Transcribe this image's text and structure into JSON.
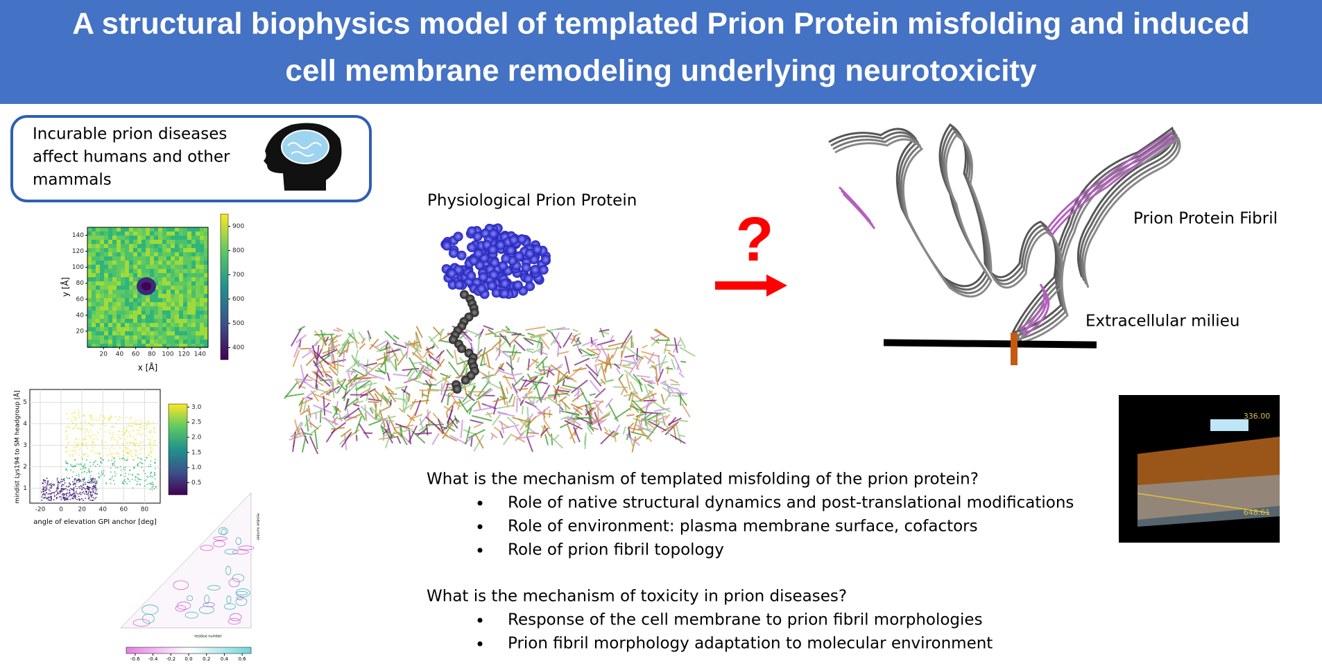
{
  "header": {
    "title_lines": [
      "A structural biophysics model of templated Prion Protein misfolding and induced",
      "cell membrane remodeling underlying neurotoxicity"
    ]
  },
  "callout": {
    "lines": [
      "Incurable prion diseases",
      "affect humans and other",
      "mammals"
    ]
  },
  "heatmap": {
    "x_label": "x [Å]",
    "y_label": "y [Å]",
    "xlim": [
      0,
      150
    ],
    "xticks": [
      20,
      40,
      60,
      80,
      100,
      120,
      140
    ],
    "ylim": [
      0,
      150
    ],
    "yticks": [
      20,
      40,
      60,
      80,
      100,
      120,
      140
    ],
    "colorbar_lim": [
      350,
      950
    ],
    "colorbar_ticks": [
      400,
      500,
      600,
      700,
      800,
      900
    ]
  },
  "scatter": {
    "x_label": "angle of elevation GPI anchor [deg]",
    "y_label": "mindist Lys194 to SM headgroup [Å]",
    "xlim": [
      -30,
      95
    ],
    "xticks": [
      -20,
      0,
      20,
      40,
      60,
      80
    ],
    "ylim": [
      0.3,
      5.6
    ],
    "yticks": [
      1,
      2,
      3,
      4,
      5
    ],
    "colorbar_lim": [
      0.1,
      3.1
    ],
    "colorbar_ticks": [
      0.5,
      {
        "value": 1,
        "label": "1.0"
      },
      1.5,
      {
        "value": 2,
        "label": "2.0"
      },
      2.5,
      {
        "value": 3,
        "label": "3.0"
      }
    ]
  },
  "contour": {
    "x_label": "residue number",
    "y_label": "residue number",
    "colorbar_lim": [
      -0.7,
      0.7
    ],
    "colorbar_ticks": [
      -0.6,
      -0.4,
      -0.2,
      {
        "value": 0,
        "label": "0.0"
      },
      0.2,
      0.4,
      0.6
    ]
  },
  "center": {
    "label": "Physiological Prion Protein",
    "question_mark": "?"
  },
  "fibril": {
    "label": "Prion Protein Fibril",
    "milieu_label": "Extracellular milieu"
  },
  "render": {
    "labels": [
      "336.00",
      "648.61"
    ]
  },
  "questions": [
    {
      "text": "What is the mechanism of templated misfolding of the prion protein?",
      "bullets": [
        "Role of native structural dynamics and post-translational modifications",
        "Role of environment: plasma membrane surface, cofactors",
        "Role of prion fibril topology"
      ]
    },
    {
      "text": "What is the mechanism of toxicity in prion diseases?",
      "bullets": [
        "Response of the cell membrane to prion fibril morphologies",
        "Prion fibril morphology adaptation to molecular environment"
      ]
    }
  ]
}
